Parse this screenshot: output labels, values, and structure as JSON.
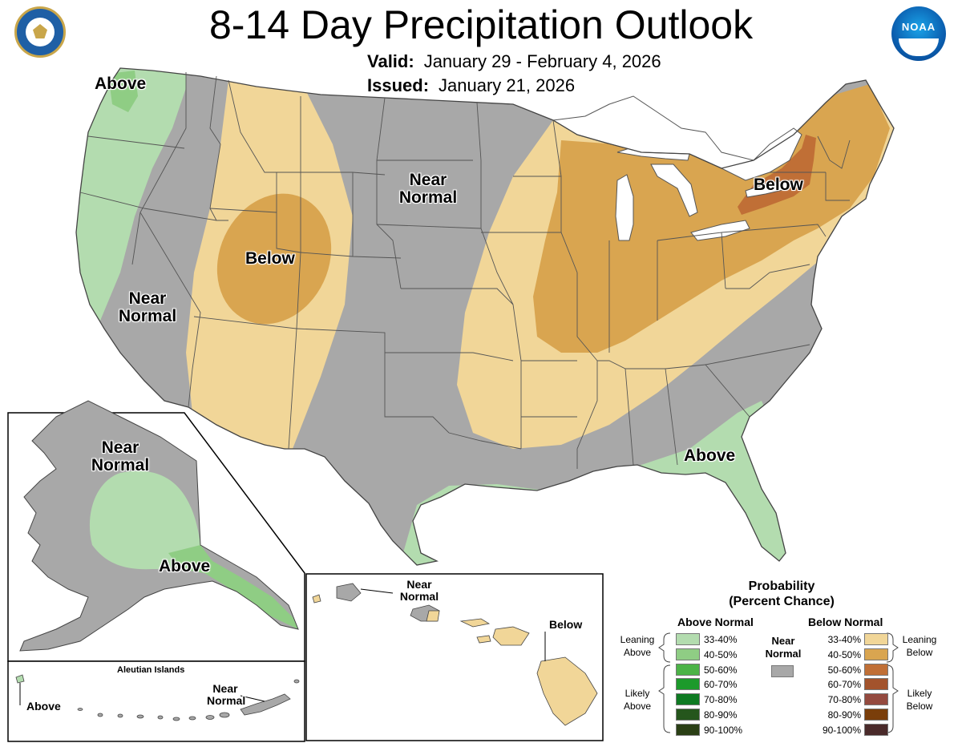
{
  "header": {
    "title": "8-14 Day Precipitation Outlook",
    "valid_label": "Valid:",
    "valid_dates": "January 29 - February 4, 2026",
    "issued_label": "Issued:",
    "issued_date": "January 21, 2026"
  },
  "logos": {
    "commerce_seal": "department-of-commerce-seal",
    "noaa_logo": "NOAA"
  },
  "colors": {
    "near_normal": "#a8a8a8",
    "above_33_40": "#b3dcaf",
    "above_40_50": "#8fcd84",
    "below_33_40": "#f1d698",
    "below_40_50": "#d9a550",
    "below_50_60": "#c06f36",
    "no_data": "#ffffff"
  },
  "map_labels": {
    "conus_above_nw": "Above",
    "conus_near_normal_west": "Near\nNormal",
    "conus_below_west": "Below",
    "conus_near_normal_central": "Near\nNormal",
    "conus_below_east": "Below",
    "conus_above_southeast": "Above",
    "alaska_near_normal": "Near\nNormal",
    "alaska_above": "Above",
    "aleutian_title": "Aleutian Islands",
    "aleutian_above": "Above",
    "aleutian_near_normal": "Near\nNormal",
    "hawaii_near_normal": "Near\nNormal",
    "hawaii_below": "Below"
  },
  "legend": {
    "title": "Probability\n(Percent Chance)",
    "above_header": "Above Normal",
    "below_header": "Below Normal",
    "near_normal_label": "Near\nNormal",
    "leaning_above": "Leaning\nAbove",
    "likely_above": "Likely\nAbove",
    "leaning_below": "Leaning\nBelow",
    "likely_below": "Likely\nBelow",
    "above_bins": [
      {
        "range": "33-40%",
        "color": "#b3dcaf"
      },
      {
        "range": "40-50%",
        "color": "#8fcd84"
      },
      {
        "range": "50-60%",
        "color": "#4cb347"
      },
      {
        "range": "60-70%",
        "color": "#1c9a2b"
      },
      {
        "range": "70-80%",
        "color": "#0e7a22"
      },
      {
        "range": "80-90%",
        "color": "#25561c"
      },
      {
        "range": "90-100%",
        "color": "#2a3f15"
      }
    ],
    "below_bins": [
      {
        "range": "33-40%",
        "color": "#f1d698"
      },
      {
        "range": "40-50%",
        "color": "#d9a550"
      },
      {
        "range": "50-60%",
        "color": "#c06f36"
      },
      {
        "range": "60-70%",
        "color": "#a3532c"
      },
      {
        "range": "70-80%",
        "color": "#944a3f"
      },
      {
        "range": "80-90%",
        "color": "#7a3e0a"
      },
      {
        "range": "90-100%",
        "color": "#4a2a2a"
      }
    ]
  }
}
